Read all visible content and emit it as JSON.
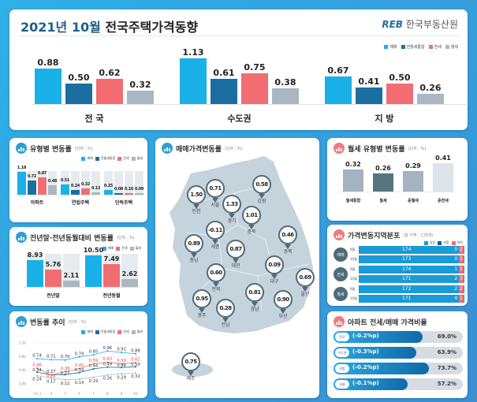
{
  "header": {
    "title_date": "2021년 10월",
    "title_main": "전국주택가격동향",
    "logo_text": "REB",
    "org": "한국부동산원"
  },
  "colors": {
    "sale": "#1ab0e8",
    "total_rent": "#1a6fa0",
    "jeonse": "#f26d72",
    "monthly": "#a9b8c3",
    "pin": "#4f6b78",
    "map": "#c5d3dc"
  },
  "legend": [
    "매매",
    "전월세통합",
    "전세",
    "월세"
  ],
  "chart_data": [
    {
      "id": "top",
      "type": "bar",
      "categories": [
        "전 국",
        "수도권",
        "지 방"
      ],
      "series": [
        {
          "name": "매매",
          "values": [
            0.88,
            1.13,
            0.67
          ]
        },
        {
          "name": "전월세통합",
          "values": [
            0.5,
            0.61,
            0.41
          ]
        },
        {
          "name": "전세",
          "values": [
            0.62,
            0.75,
            0.5
          ]
        },
        {
          "name": "월세",
          "values": [
            0.32,
            0.38,
            0.26
          ]
        }
      ]
    },
    {
      "id": "type",
      "type": "bar",
      "title": "유형별 변동률",
      "unit": "(단위 : %)",
      "categories": [
        "아파트",
        "연립주택",
        "단독주택"
      ],
      "series": [
        {
          "name": "매매",
          "values": [
            1.18,
            0.51,
            0.25
          ]
        },
        {
          "name": "전월세통합",
          "values": [
            0.72,
            0.24,
            0.08
          ]
        },
        {
          "name": "전세",
          "values": [
            0.87,
            0.32,
            0.1
          ]
        },
        {
          "name": "월세",
          "values": [
            0.48,
            0.13,
            0.09
          ]
        }
      ]
    },
    {
      "id": "yoy",
      "type": "bar",
      "title": "전년말·전년동월대비 변동률",
      "unit": "(단위 : %)",
      "legend": [
        "매매",
        "전세",
        "월세"
      ],
      "categories": [
        "전년말",
        "전년동월"
      ],
      "series": [
        {
          "name": "매매",
          "values": [
            8.93,
            10.5
          ]
        },
        {
          "name": "전세",
          "values": [
            5.76,
            7.49
          ]
        },
        {
          "name": "월세",
          "values": [
            2.11,
            2.62
          ]
        }
      ]
    },
    {
      "id": "trend",
      "type": "line",
      "title": "변동률 추이",
      "unit": "(단위 : %)",
      "x": [
        "'21.3",
        "4",
        "5",
        "6",
        "7",
        "8",
        "9",
        "10"
      ],
      "yticks": [
        "0.00",
        "0.40",
        "0.80",
        "1.20"
      ],
      "ylim": [
        0,
        1.2
      ],
      "series": [
        {
          "name": "매매",
          "values": [
            0.74,
            0.71,
            0.7,
            0.79,
            0.85,
            0.96,
            0.92,
            0.88
          ]
        },
        {
          "name": "전월세통합",
          "values": [
            0.34,
            0.27,
            0.27,
            0.33,
            0.44,
            0.49,
            0.48,
            0.5
          ]
        },
        {
          "name": "전세",
          "values": [
            0.46,
            0.26,
            0.36,
            0.45,
            0.59,
            0.63,
            0.59,
            0.62
          ]
        },
        {
          "name": "월세",
          "values": [
            0.24,
            0.17,
            0.12,
            0.14,
            0.19,
            0.26,
            0.29,
            0.32
          ]
        }
      ]
    },
    {
      "id": "monthly",
      "type": "bar",
      "title": "월세 유형별 변동률",
      "unit": "(단위 : %)",
      "categories": [
        "월세통합",
        "월세",
        "준월세",
        "준전세"
      ],
      "values": [
        0.32,
        0.26,
        0.29,
        0.41
      ],
      "colors": [
        "#a3b3bf",
        "#557580",
        "#a3b3bf",
        "#dde4ea"
      ]
    }
  ],
  "map": {
    "title": "매매가격변동률",
    "unit": "(단위 : %)",
    "regions": [
      {
        "name": "인천",
        "value": "1.50"
      },
      {
        "name": "서울",
        "value": "0.71"
      },
      {
        "name": "경기",
        "value": "1.33"
      },
      {
        "name": "강원",
        "value": "0.58"
      },
      {
        "name": "충북",
        "value": "1.01"
      },
      {
        "name": "세종",
        "value": "-0.11"
      },
      {
        "name": "충남",
        "value": "0.89"
      },
      {
        "name": "대전",
        "value": "0.87"
      },
      {
        "name": "경북",
        "value": "0.46"
      },
      {
        "name": "대구",
        "value": "0.09"
      },
      {
        "name": "전북",
        "value": "0.60"
      },
      {
        "name": "울산",
        "value": "0.69"
      },
      {
        "name": "경남",
        "value": "0.81"
      },
      {
        "name": "부산",
        "value": "0.90"
      },
      {
        "name": "광주",
        "value": "0.95"
      },
      {
        "name": "전남",
        "value": "0.28"
      },
      {
        "name": "제주",
        "value": "0.75"
      }
    ]
  },
  "distribution": {
    "title": "가격변동지역분포",
    "note": "(총 지역 : 176개)",
    "legend": [
      "상승",
      "보합",
      "하락"
    ],
    "groups": [
      {
        "label": "매매",
        "rows": [
          {
            "month": "9월",
            "up": 174,
            "flat": 0,
            "down": 2
          },
          {
            "month": "10월",
            "up": 173,
            "flat": 0,
            "down": 3
          }
        ]
      },
      {
        "label": "전세",
        "rows": [
          {
            "month": "9월",
            "up": 174,
            "flat": 1,
            "down": 1
          },
          {
            "month": "10월",
            "up": 171,
            "flat": 2,
            "down": 3
          }
        ]
      },
      {
        "label": "월세",
        "rows": [
          {
            "month": "9월",
            "up": 172,
            "flat": 2,
            "down": 2
          },
          {
            "month": "10월",
            "up": 171,
            "flat": 4,
            "down": 1
          }
        ]
      }
    ]
  },
  "ratio": {
    "title": "아파트 전세/매매 가격비율",
    "rows": [
      {
        "region": "전국",
        "change": "(-0.2%p)",
        "value": 69.0,
        "label": "69.0%"
      },
      {
        "region": "수도권",
        "change": "(-0.3%p)",
        "value": 63.9,
        "label": "63.9%"
      },
      {
        "region": "지방",
        "change": "(-0.2%p)",
        "value": 73.7,
        "label": "73.7%"
      },
      {
        "region": "서울",
        "change": "(-0.1%p)",
        "value": 57.2,
        "label": "57.2%"
      }
    ]
  }
}
